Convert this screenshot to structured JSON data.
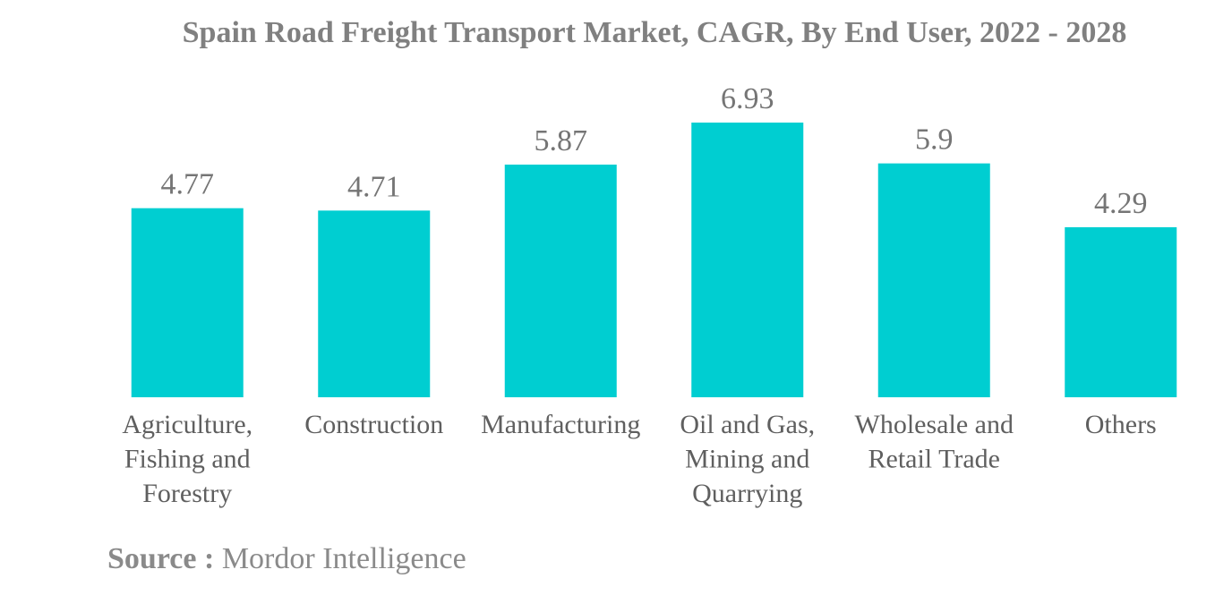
{
  "chart_data": {
    "type": "bar",
    "title": "Spain Road Freight Transport Market, CAGR, By End User, 2022 - 2028",
    "categories": [
      [
        "Agriculture,",
        "Fishing and",
        "Forestry"
      ],
      [
        "Construction"
      ],
      [
        "Manufacturing"
      ],
      [
        "Oil and Gas,",
        "Mining and",
        "Quarrying"
      ],
      [
        "Wholesale and",
        "Retail Trade"
      ],
      [
        "Others"
      ]
    ],
    "values": [
      4.77,
      4.71,
      5.87,
      6.93,
      5.9,
      4.29
    ],
    "value_labels": [
      "4.77",
      "4.71",
      "5.87",
      "6.93",
      "5.9",
      "4.29"
    ],
    "ylim": [
      0,
      6.93
    ],
    "grid": false,
    "bar_color": "#00ced1"
  },
  "source": {
    "label": "Source :",
    "text": "Mordor Intelligence"
  }
}
